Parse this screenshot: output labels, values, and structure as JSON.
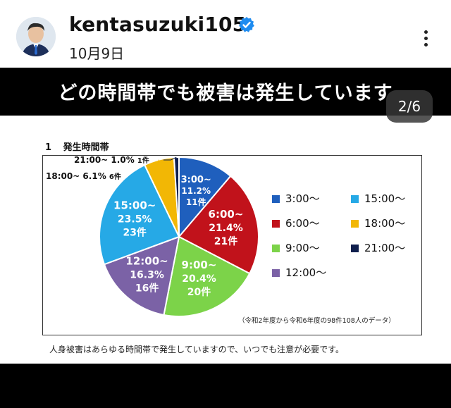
{
  "post": {
    "username": "kentasuzuki105",
    "date": "10月9日"
  },
  "slide": {
    "banner": "どの時間帯でも被害は発生しています",
    "counter": "2/6",
    "section_number": "1",
    "section_title": "発生時間帯",
    "footnote": "（令和2年度から令和6年度の98件108人のデータ）",
    "caption": "人身被害はあらゆる時間帯で発生していますので、いつでも注意が必要です。"
  },
  "chart_data": {
    "type": "pie",
    "slices": [
      {
        "label": "3:00~",
        "percent": "11.2%",
        "count": "11件",
        "value": 11.2,
        "color": "#1f5fbd"
      },
      {
        "label": "6:00~",
        "percent": "21.4%",
        "count": "21件",
        "value": 21.4,
        "color": "#c1121b"
      },
      {
        "label": "9:00~",
        "percent": "20.4%",
        "count": "20件",
        "value": 20.4,
        "color": "#7cd349"
      },
      {
        "label": "12:00~",
        "percent": "16.3%",
        "count": "16件",
        "value": 16.3,
        "color": "#7b62a6"
      },
      {
        "label": "15:00~",
        "percent": "23.5%",
        "count": "23件",
        "value": 23.5,
        "color": "#26a9e6"
      },
      {
        "label": "18:00~",
        "percent": "6.1%",
        "count": "6件",
        "value": 6.1,
        "color": "#f2b705"
      },
      {
        "label": "21:00~",
        "percent": "1.0%",
        "count": "1件",
        "value": 1.0,
        "color": "#0f1f4d"
      }
    ],
    "legend": [
      {
        "label": "3:00〜",
        "color": "#1f5fbd"
      },
      {
        "label": "15:00〜",
        "color": "#26a9e6"
      },
      {
        "label": "6:00〜",
        "color": "#c1121b"
      },
      {
        "label": "18:00〜",
        "color": "#f2b705"
      },
      {
        "label": "9:00〜",
        "color": "#7cd349"
      },
      {
        "label": "21:00〜",
        "color": "#0f1f4d"
      },
      {
        "label": "12:00〜",
        "color": "#7b62a6"
      }
    ]
  }
}
